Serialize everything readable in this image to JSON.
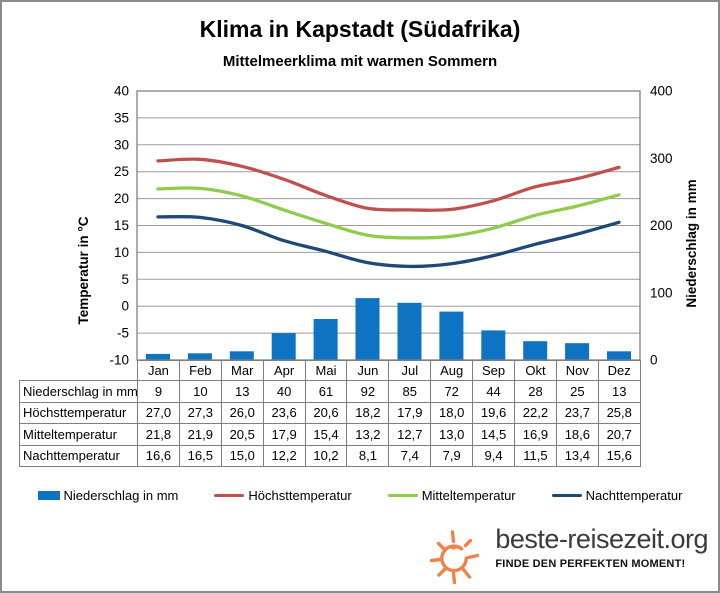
{
  "frame": {
    "title": "Klima in Kapstadt (Südafrika)",
    "subtitle": "Mittelmeerklima mit warmen Sommern"
  },
  "chart_data": {
    "type": "combo-bar-line",
    "categories": [
      "Jan",
      "Feb",
      "Mar",
      "Apr",
      "Mai",
      "Jun",
      "Jul",
      "Aug",
      "Sep",
      "Okt",
      "Nov",
      "Dez"
    ],
    "bar_series": {
      "name": "Niederschlag in mm",
      "values": [
        9,
        10,
        13,
        40,
        61,
        92,
        85,
        72,
        44,
        28,
        25,
        13
      ],
      "color": "#0d73c2",
      "axis": "right"
    },
    "line_series": [
      {
        "name": "Höchsttemperatur",
        "values": [
          27.0,
          27.3,
          26.0,
          23.6,
          20.6,
          18.2,
          17.9,
          18.0,
          19.6,
          22.2,
          23.7,
          25.8
        ],
        "color": "#c0504d"
      },
      {
        "name": "Mitteltemperatur",
        "values": [
          21.8,
          21.9,
          20.5,
          17.9,
          15.4,
          13.2,
          12.7,
          13.0,
          14.5,
          16.9,
          18.6,
          20.7
        ],
        "color": "#8fcc4c"
      },
      {
        "name": "Nachttemperatur",
        "values": [
          16.6,
          16.5,
          15.0,
          12.2,
          10.2,
          8.1,
          7.4,
          7.9,
          9.4,
          11.5,
          13.4,
          15.6
        ],
        "color": "#1e4877"
      }
    ],
    "left_axis": {
      "label": "Temperatur in °C",
      "min": -10,
      "max": 40,
      "step": 5,
      "ticks": [
        "40",
        "35",
        "30",
        "25",
        "20",
        "15",
        "10",
        "5",
        "0",
        "-5",
        "-10"
      ]
    },
    "right_axis": {
      "label": "Niederschlag in  mm",
      "min": 0,
      "max": 400,
      "step": 100,
      "ticks": [
        "400",
        "300",
        "200",
        "100",
        "0"
      ]
    },
    "grid": true,
    "legend_position": "bottom",
    "colors": {
      "grid": "#9c9c9c",
      "plot_border": "#7f7f7f"
    }
  },
  "table": {
    "month_header": [
      "Jan",
      "Feb",
      "Mar",
      "Apr",
      "Mai",
      "Jun",
      "Jul",
      "Aug",
      "Sep",
      "Okt",
      "Nov",
      "Dez"
    ],
    "rows": [
      {
        "label": "Niederschlag in mm",
        "values": [
          "9",
          "10",
          "13",
          "40",
          "61",
          "92",
          "85",
          "72",
          "44",
          "28",
          "25",
          "13"
        ]
      },
      {
        "label": "Höchsttemperatur",
        "values": [
          "27,0",
          "27,3",
          "26,0",
          "23,6",
          "20,6",
          "18,2",
          "17,9",
          "18,0",
          "19,6",
          "22,2",
          "23,7",
          "25,8"
        ]
      },
      {
        "label": "Mitteltemperatur",
        "values": [
          "21,8",
          "21,9",
          "20,5",
          "17,9",
          "15,4",
          "13,2",
          "12,7",
          "13,0",
          "14,5",
          "16,9",
          "18,6",
          "20,7"
        ]
      },
      {
        "label": "Nachttemperatur",
        "values": [
          "16,6",
          "16,5",
          "15,0",
          "12,2",
          "10,2",
          "8,1",
          "7,4",
          "7,9",
          "9,4",
          "11,5",
          "13,4",
          "15,6"
        ]
      }
    ]
  },
  "logo": {
    "name": "beste-reisezeit.org",
    "tagline": "FINDE DEN PERFEKTEN MOMENT!",
    "sun_color": "#f08249",
    "text_color": "#3b3b3b"
  }
}
